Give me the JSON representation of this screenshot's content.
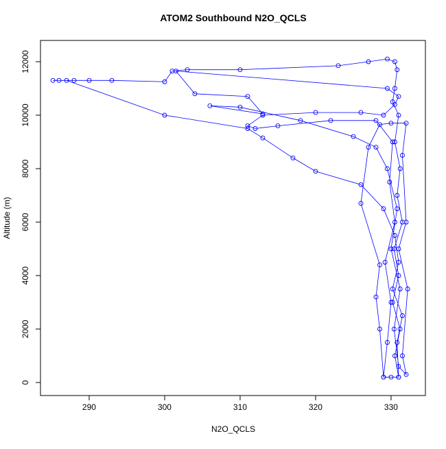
{
  "chart_data": {
    "type": "line",
    "title": "ATOM2 Southbound N2O_QCLS",
    "x_label": "N2O_QCLS",
    "y_label": "Altitude (m)",
    "xlim": [
      283.55,
      334.55
    ],
    "ylim": [
      -487,
      12795
    ],
    "xticks": [
      290,
      300,
      310,
      320,
      330
    ],
    "yticks": [
      0,
      2000,
      4000,
      6000,
      8000,
      10000,
      12000
    ],
    "series": [
      {
        "color": "#0000ff",
        "x": [
          331,
          330.5,
          331.2,
          330.2,
          331,
          330.4,
          331.5,
          330.8,
          331.2,
          330.5,
          331,
          330.2,
          330.5,
          330.8,
          330.5,
          329.5,
          327,
          323,
          310,
          303,
          301,
          300,
          293,
          290,
          288,
          286,
          285.2,
          287,
          300,
          311,
          313,
          317,
          320,
          326,
          329,
          330.5,
          331,
          330.2,
          331.5,
          330.8,
          331,
          329,
          329.5,
          330,
          329.2,
          330.5,
          329.8,
          330.2,
          328,
          322,
          315,
          312,
          311,
          313,
          320,
          326,
          329,
          330.5,
          331,
          329.5,
          301.5,
          304,
          311,
          313,
          306,
          310,
          318,
          325,
          328,
          329.5,
          330.8,
          330,
          331.2,
          330.4,
          331,
          332,
          331.5,
          332.2,
          331,
          332,
          331.5,
          332,
          330,
          328.5,
          327,
          326,
          328.5,
          328,
          328.5,
          329,
          330
        ],
        "y": [
          200,
          1000,
          2000,
          3000,
          4000,
          5000,
          6000,
          7000,
          8000,
          9000,
          10000,
          10500,
          11000,
          11700,
          12000,
          12100,
          12000,
          11850,
          11700,
          11700,
          11650,
          11250,
          11300,
          11300,
          11300,
          11300,
          11300,
          11300,
          10000,
          9500,
          9150,
          8400,
          7900,
          7400,
          6500,
          5500,
          4500,
          3500,
          2500,
          1500,
          200,
          200,
          1500,
          3000,
          4500,
          6000,
          7500,
          9000,
          9800,
          9800,
          9600,
          9500,
          9600,
          10000,
          10100,
          10100,
          10000,
          10400,
          10700,
          11000,
          11650,
          10800,
          10700,
          10050,
          10350,
          10300,
          9800,
          9200,
          8800,
          8000,
          6500,
          5000,
          3500,
          2000,
          600,
          300,
          1000,
          3500,
          5000,
          6000,
          8500,
          9700,
          9700,
          9650,
          8800,
          6700,
          4400,
          3200,
          2000,
          200,
          200
        ]
      }
    ]
  }
}
